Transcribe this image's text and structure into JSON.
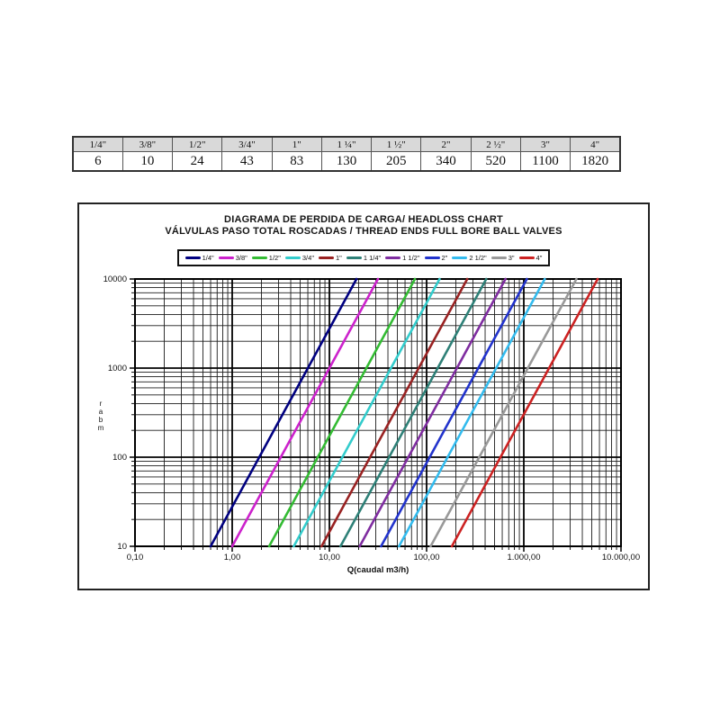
{
  "page": {
    "background": "#ffffff"
  },
  "kv_table": {
    "header_bg": "#d9d9d9",
    "headers": [
      "1/4\"",
      "3/8\"",
      "1/2\"",
      "3/4\"",
      "1\"",
      "1 ¼\"",
      "1 ½\"",
      "2\"",
      "2 ½\"",
      "3\"",
      "4\""
    ],
    "values": [
      "6",
      "10",
      "24",
      "43",
      "83",
      "130",
      "205",
      "340",
      "520",
      "1100",
      "1820"
    ]
  },
  "chart_data": {
    "type": "line",
    "title": "DIAGRAMA DE PERDIDA DE CARGA/ HEADLOSS CHART",
    "subtitle": "VÁLVULAS PASO TOTAL ROSCADAS / THREAD ENDS FULL BORE BALL VALVES",
    "xlabel": "Q(caudal m3/h)",
    "ylabel": "mbar",
    "x_scale": "log",
    "y_scale": "log",
    "xlim": [
      0.1,
      10000
    ],
    "ylim": [
      10,
      10000
    ],
    "x_tick_labels": [
      "0,10",
      "1,00",
      "10,00",
      "100,00",
      "1.000,00",
      "10.000,00"
    ],
    "y_tick_labels": [
      "10",
      "100",
      "1000",
      "10000"
    ],
    "grid": "log major and minor gridlines, black, both axes",
    "legend_position": "top",
    "series": [
      {
        "name": "1/4\"",
        "color": "#000080",
        "kv": 6,
        "points": [
          [
            0.6,
            10
          ],
          [
            19,
            10000
          ]
        ]
      },
      {
        "name": "3/8\"",
        "color": "#CC22CC",
        "kv": 10,
        "points": [
          [
            1.0,
            10
          ],
          [
            31.6,
            10000
          ]
        ]
      },
      {
        "name": "1/2\"",
        "color": "#33BB33",
        "kv": 24,
        "points": [
          [
            2.4,
            10
          ],
          [
            75.9,
            10000
          ]
        ]
      },
      {
        "name": "3/4\"",
        "color": "#33CCCC",
        "kv": 43,
        "points": [
          [
            4.3,
            10
          ],
          [
            136,
            10000
          ]
        ]
      },
      {
        "name": "1\"",
        "color": "#992222",
        "kv": 83,
        "points": [
          [
            8.3,
            10
          ],
          [
            262,
            10000
          ]
        ]
      },
      {
        "name": "1 1/4\"",
        "color": "#2E8077",
        "kv": 130,
        "points": [
          [
            13,
            10
          ],
          [
            411,
            10000
          ]
        ]
      },
      {
        "name": "1 1/2\"",
        "color": "#7F2DA0",
        "kv": 205,
        "points": [
          [
            20.5,
            10
          ],
          [
            648,
            10000
          ]
        ]
      },
      {
        "name": "2\"",
        "color": "#2233CC",
        "kv": 340,
        "points": [
          [
            34,
            10
          ],
          [
            1075,
            10000
          ]
        ]
      },
      {
        "name": "2 1/2\"",
        "color": "#33BBEE",
        "kv": 520,
        "points": [
          [
            52,
            10
          ],
          [
            1644,
            10000
          ]
        ]
      },
      {
        "name": "3\"",
        "color": "#999999",
        "kv": 1100,
        "points": [
          [
            110,
            10
          ],
          [
            3479,
            10000
          ]
        ]
      },
      {
        "name": "4\"",
        "color": "#CC2222",
        "kv": 1820,
        "points": [
          [
            182,
            10
          ],
          [
            5755,
            10000
          ]
        ]
      }
    ]
  }
}
